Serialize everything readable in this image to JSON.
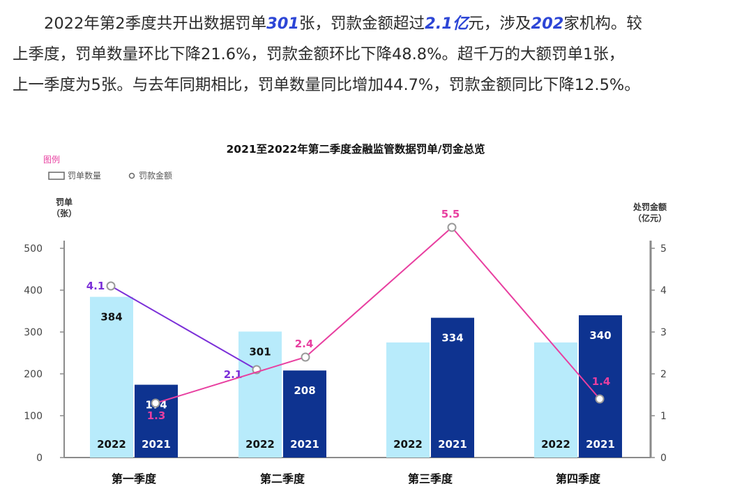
{
  "paragraph": {
    "line1": [
      {
        "text": "2022年第2季度共开出数据罚单",
        "hl": false
      },
      {
        "text": "301",
        "hl": true
      },
      {
        "text": "张，罚款金额超过",
        "hl": false
      },
      {
        "text": "2.1亿",
        "hl": true
      },
      {
        "text": "元，涉及",
        "hl": false
      },
      {
        "text": "202",
        "hl": true
      },
      {
        "text": "家机构。较",
        "hl": false
      }
    ],
    "line2": "上季度，罚单数量环比下降21.6%，罚款金额环比下降48.8%。超千万的大额罚单1张，",
    "line3": "上一季度为5张。与去年同期相比，罚单数量同比增加44.7%，罚款金额同比下降12.5%。"
  },
  "legend": {
    "title": "图例",
    "bar_label": "罚单数量",
    "dot_label": "罚款金额"
  },
  "colors": {
    "bar_2022": "#b8ebfb",
    "bar_2021": "#0e3390",
    "line_2022": "#7b2fd8",
    "line_2021": "#e83fa0",
    "axis": "#8a8a8a",
    "legend_title": "#e83fa0",
    "highlight": "#2d46d6"
  },
  "chart_data": {
    "type": "bar",
    "title": "2021至2022年第二季度金融监管数据罚单/罚金总览",
    "categories": [
      "第一季度",
      "第二季度",
      "第三季度",
      "第四季度"
    ],
    "ylabel_left": [
      "罚单",
      "（张）"
    ],
    "ylabel_right": [
      "处罚金额",
      "（亿元）"
    ],
    "ylim_left": [
      0,
      500
    ],
    "yticks_left": [
      "0",
      "100",
      "200",
      "300",
      "400",
      "500"
    ],
    "ylim_right": [
      0,
      5
    ],
    "yticks_right": [
      "0",
      "1",
      "2",
      "3",
      "4",
      "5"
    ],
    "bar_series": [
      {
        "name": "2022",
        "values": [
          384,
          301,
          275,
          275
        ],
        "labels": [
          "384",
          "301",
          "",
          ""
        ]
      },
      {
        "name": "2021",
        "values": [
          174,
          208,
          334,
          340
        ],
        "labels": [
          "174",
          "208",
          "334",
          "340"
        ]
      }
    ],
    "line_series": [
      {
        "name": "2022",
        "values": [
          4.1,
          2.1,
          null,
          null
        ],
        "labels": [
          "4.1",
          "2.1",
          "",
          ""
        ]
      },
      {
        "name": "2021",
        "values": [
          1.3,
          2.4,
          5.5,
          1.4
        ],
        "labels": [
          "1.3",
          "2.4",
          "5.5",
          "1.4"
        ]
      }
    ]
  }
}
